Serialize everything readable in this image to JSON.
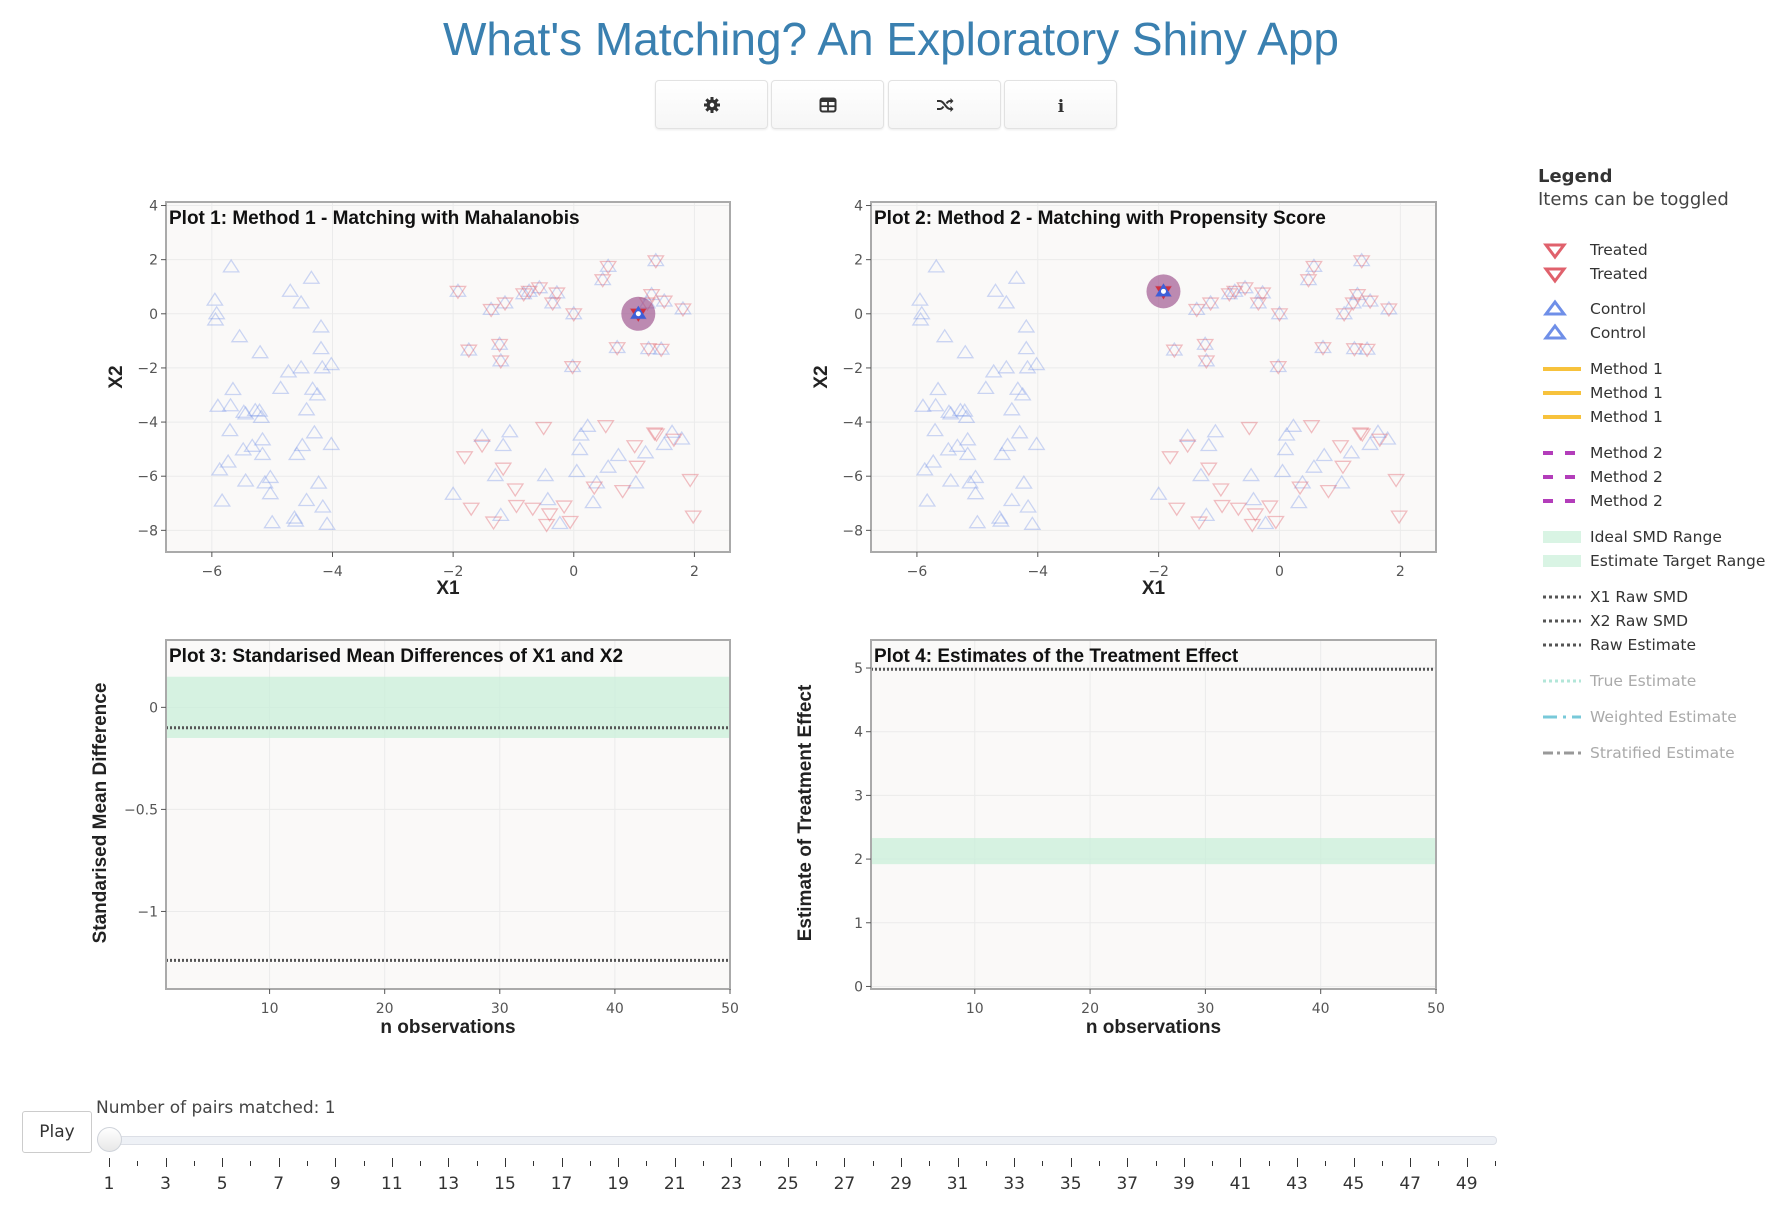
{
  "app_title": "What's Matching? An Exploratory Shiny App",
  "toolbar": [
    {
      "icon": "gear-icon",
      "name": "settings-button"
    },
    {
      "icon": "table-icon",
      "name": "table-button"
    },
    {
      "icon": "shuffle-icon",
      "name": "shuffle-button"
    },
    {
      "icon": "info-icon",
      "name": "info-button",
      "glyph": "i"
    }
  ],
  "colors": {
    "treated": "#e0616c",
    "control": "#6f8fe8",
    "method1": "#f7c23c",
    "method2": "#b33dba",
    "range": "#c9efd9",
    "raw": "#555555",
    "true": "#9fe0cf",
    "weighted": "#78c9d9",
    "stratified": "#999999",
    "highlight": "#9b4f8a",
    "title": "#3a80b0"
  },
  "legend": {
    "title": "Legend",
    "subtitle": "Items can be toggled",
    "items": [
      {
        "label": "Treated",
        "kind": "tri-down",
        "color": "#e0616c",
        "active": true
      },
      {
        "label": "Treated",
        "kind": "tri-down",
        "color": "#e0616c",
        "active": true
      },
      {
        "label": "Control",
        "kind": "tri-up",
        "color": "#6f8fe8",
        "active": true
      },
      {
        "label": "Control",
        "kind": "tri-up",
        "color": "#6f8fe8",
        "active": true
      },
      {
        "label": "Method 1",
        "kind": "solid",
        "color": "#f7c23c",
        "active": true
      },
      {
        "label": "Method 1",
        "kind": "solid",
        "color": "#f7c23c",
        "active": true
      },
      {
        "label": "Method 1",
        "kind": "solid",
        "color": "#f7c23c",
        "active": true
      },
      {
        "label": "Method 2",
        "kind": "dash",
        "color": "#b33dba",
        "active": true
      },
      {
        "label": "Method 2",
        "kind": "dash",
        "color": "#b33dba",
        "active": true
      },
      {
        "label": "Method 2",
        "kind": "dash",
        "color": "#b33dba",
        "active": true
      },
      {
        "label": "Ideal SMD Range",
        "kind": "band",
        "color": "#c9efd9",
        "active": true
      },
      {
        "label": "Estimate Target Range",
        "kind": "band",
        "color": "#c9efd9",
        "active": true
      },
      {
        "label": "X1 Raw SMD",
        "kind": "dot",
        "color": "#555555",
        "active": true
      },
      {
        "label": "X2 Raw SMD",
        "kind": "dot",
        "color": "#555555",
        "active": true
      },
      {
        "label": "Raw Estimate",
        "kind": "dot",
        "color": "#555555",
        "active": true
      },
      {
        "label": "True Estimate",
        "kind": "dot",
        "color": "#9fe0cf",
        "active": false
      },
      {
        "label": "Weighted Estimate",
        "kind": "dashdot",
        "color": "#78c9d9",
        "active": false
      },
      {
        "label": "Stratified Estimate",
        "kind": "longdashdot",
        "color": "#999999",
        "active": false
      }
    ]
  },
  "points": {
    "control": [
      [
        -5.68,
        1.73
      ],
      [
        -5.95,
        0.5
      ],
      [
        -5.92,
        0
      ],
      [
        -5.94,
        -0.23
      ],
      [
        -5.54,
        -0.85
      ],
      [
        -5.2,
        -1.44
      ],
      [
        -4.7,
        0.83
      ],
      [
        -4.52,
        0.4
      ],
      [
        -4.35,
        1.31
      ],
      [
        -4.19,
        -0.49
      ],
      [
        -4.19,
        -1.29
      ],
      [
        -4.02,
        -1.88
      ],
      [
        -4.17,
        -2.0
      ],
      [
        -4.52,
        -2.0
      ],
      [
        -4.73,
        -2.15
      ],
      [
        -4.86,
        -2.76
      ],
      [
        -4.33,
        -2.79
      ],
      [
        -4.25,
        -3.0
      ],
      [
        -5.65,
        -2.8
      ],
      [
        -5.9,
        -3.42
      ],
      [
        -5.69,
        -3.4
      ],
      [
        -5.47,
        -3.64
      ],
      [
        -5.44,
        -3.7
      ],
      [
        -5.28,
        -3.58
      ],
      [
        -5.21,
        -3.6
      ],
      [
        -5.18,
        -3.83
      ],
      [
        -4.43,
        -3.55
      ],
      [
        -5.7,
        -4.32
      ],
      [
        -4.3,
        -4.4
      ],
      [
        -5.16,
        -4.66
      ],
      [
        -5.33,
        -4.9
      ],
      [
        -5.48,
        -5.03
      ],
      [
        -4.5,
        -4.87
      ],
      [
        -4.59,
        -5.2
      ],
      [
        -5.16,
        -5.2
      ],
      [
        -4.02,
        -4.83
      ],
      [
        -5.73,
        -5.48
      ],
      [
        -5.87,
        -5.77
      ],
      [
        -5.44,
        -6.18
      ],
      [
        -5.12,
        -6.25
      ],
      [
        -5.03,
        -6.05
      ],
      [
        -4.23,
        -6.26
      ],
      [
        -5.03,
        -6.65
      ],
      [
        -5.83,
        -6.92
      ],
      [
        -4.43,
        -6.9
      ],
      [
        -4.16,
        -7.14
      ],
      [
        -4.63,
        -7.55
      ],
      [
        -4.61,
        -7.66
      ],
      [
        -5.0,
        -7.72
      ],
      [
        -4.09,
        -7.78
      ],
      [
        -2.0,
        -6.67
      ],
      [
        -1.52,
        -4.53
      ],
      [
        -1.06,
        -4.36
      ],
      [
        -1.17,
        -4.87
      ],
      [
        -1.3,
        -5.98
      ],
      [
        -1.21,
        -7.45
      ],
      [
        -0.47,
        -5.98
      ],
      [
        -0.43,
        -6.87
      ],
      [
        -0.23,
        -7.75
      ],
      [
        0.05,
        -5.83
      ],
      [
        0.1,
        -5.02
      ],
      [
        0.12,
        -4.48
      ],
      [
        0.23,
        -4.16
      ],
      [
        0.38,
        -6.25
      ],
      [
        0.32,
        -6.98
      ],
      [
        0.57,
        -5.67
      ],
      [
        0.74,
        -5.24
      ],
      [
        1.03,
        -6.25
      ],
      [
        1.19,
        -5.14
      ],
      [
        1.5,
        -4.83
      ],
      [
        1.63,
        -4.38
      ],
      [
        1.79,
        -4.63
      ],
      [
        -1.92,
        0.83
      ],
      [
        -1.37,
        0.16
      ],
      [
        -1.14,
        0.4
      ],
      [
        -0.83,
        0.74
      ],
      [
        -0.74,
        0.83
      ],
      [
        -0.57,
        0.96
      ],
      [
        -0.28,
        0.77
      ],
      [
        -0.35,
        0.4
      ],
      [
        0,
        0
      ],
      [
        0.57,
        1.75
      ],
      [
        0.48,
        1.26
      ],
      [
        1.36,
        1.96
      ],
      [
        1.29,
        0.71
      ],
      [
        1.5,
        0.47
      ],
      [
        1.81,
        0.18
      ],
      [
        1.22,
        0.4
      ],
      [
        -1.74,
        -1.34
      ],
      [
        -1.23,
        -1.13
      ],
      [
        -1.21,
        -1.74
      ],
      [
        -0.02,
        -1.95
      ],
      [
        0.72,
        -1.25
      ],
      [
        1.24,
        -1.29
      ],
      [
        1.45,
        -1.31
      ],
      [
        1.07,
        0
      ]
    ],
    "treated": [
      [
        -1.81,
        -5.28
      ],
      [
        -1.52,
        -4.85
      ],
      [
        -1.17,
        -5.7
      ],
      [
        -0.97,
        -6.47
      ],
      [
        -1.7,
        -7.18
      ],
      [
        -0.95,
        -7.08
      ],
      [
        -1.33,
        -7.69
      ],
      [
        -0.68,
        -7.18
      ],
      [
        -0.5,
        -4.2
      ],
      [
        -0.4,
        -7.39
      ],
      [
        -0.45,
        -7.78
      ],
      [
        -0.16,
        -7.1
      ],
      [
        -0.06,
        -7.67
      ],
      [
        0.34,
        -6.4
      ],
      [
        0.53,
        -4.13
      ],
      [
        0.81,
        -6.53
      ],
      [
        1.01,
        -4.87
      ],
      [
        1.05,
        -5.63
      ],
      [
        1.34,
        -4.4
      ],
      [
        1.37,
        -4.44
      ],
      [
        1.66,
        -4.63
      ],
      [
        1.93,
        -6.12
      ],
      [
        1.98,
        -7.47
      ],
      [
        -1.92,
        0.83
      ],
      [
        -1.37,
        0.16
      ],
      [
        -1.14,
        0.4
      ],
      [
        -0.83,
        0.74
      ],
      [
        -0.74,
        0.83
      ],
      [
        -0.57,
        0.96
      ],
      [
        -0.28,
        0.77
      ],
      [
        -0.35,
        0.4
      ],
      [
        0,
        0
      ],
      [
        0.57,
        1.75
      ],
      [
        0.48,
        1.26
      ],
      [
        1.36,
        1.96
      ],
      [
        1.29,
        0.71
      ],
      [
        1.5,
        0.47
      ],
      [
        1.81,
        0.18
      ],
      [
        1.22,
        0.4
      ],
      [
        -1.74,
        -1.34
      ],
      [
        -1.23,
        -1.13
      ],
      [
        -1.21,
        -1.74
      ],
      [
        -0.02,
        -1.95
      ],
      [
        0.72,
        -1.25
      ],
      [
        1.24,
        -1.29
      ],
      [
        1.45,
        -1.31
      ],
      [
        1.07,
        0
      ]
    ]
  },
  "chart_data": [
    {
      "type": "scatter",
      "title": "Plot 1: Method 1 - Matching with Mahalanobis",
      "xlabel": "X1",
      "ylabel": "X2",
      "xlim": [
        -6.76,
        2.59
      ],
      "ylim": [
        -8.8,
        4.13
      ],
      "xticks": [
        -6,
        -4,
        -2,
        0,
        2
      ],
      "yticks": [
        -8,
        -6,
        -4,
        -2,
        0,
        2,
        4
      ],
      "grid": true,
      "highlight": [
        1.07,
        0
      ]
    },
    {
      "type": "scatter",
      "title": "Plot 2: Method 2 - Matching with Propensity Score",
      "xlabel": "X1",
      "ylabel": "X2",
      "xlim": [
        -6.76,
        2.59
      ],
      "ylim": [
        -8.8,
        4.13
      ],
      "xticks": [
        -6,
        -4,
        -2,
        0,
        2
      ],
      "yticks": [
        -8,
        -6,
        -4,
        -2,
        0,
        2,
        4
      ],
      "grid": true,
      "highlight": [
        -1.92,
        0.83
      ]
    },
    {
      "type": "line",
      "title": "Plot 3: Standarised Mean Differences of X1 and X2",
      "xlabel": "n observations",
      "ylabel": "Standarised Mean Difference",
      "xlim": [
        1,
        50
      ],
      "ylim": [
        -1.38,
        0.33
      ],
      "xticks": [
        10,
        20,
        30,
        40,
        50
      ],
      "yticks": [
        -1,
        -0.5,
        0
      ],
      "ytick_labels": [
        "−1",
        "−0.5",
        "0"
      ],
      "grid": true,
      "band": [
        -0.15,
        0.15
      ],
      "hlines": [
        {
          "name": "X1 Raw SMD",
          "y": -1.24
        },
        {
          "name": "X2 Raw SMD",
          "y": -0.1
        }
      ]
    },
    {
      "type": "line",
      "title": "Plot 4: Estimates of the Treatment Effect",
      "xlabel": "n observations",
      "ylabel": "Estimate of Treatment Effect",
      "xlim": [
        1,
        50
      ],
      "ylim": [
        -0.04,
        5.44
      ],
      "xticks": [
        10,
        20,
        30,
        40,
        50
      ],
      "yticks": [
        0,
        1,
        2,
        3,
        4,
        5
      ],
      "grid": true,
      "band": [
        1.92,
        2.33
      ],
      "hlines": [
        {
          "name": "Raw Estimate",
          "y": 4.98
        }
      ]
    }
  ],
  "slider": {
    "label": "Number of pairs matched: 1",
    "play_label": "Play",
    "min": 1,
    "max": 50,
    "value": 1,
    "tick_labels": [
      "1",
      "3",
      "5",
      "7",
      "9",
      "11",
      "13",
      "15",
      "17",
      "19",
      "21",
      "23",
      "25",
      "27",
      "29",
      "31",
      "33",
      "35",
      "37",
      "39",
      "41",
      "43",
      "45",
      "47",
      "49"
    ]
  }
}
